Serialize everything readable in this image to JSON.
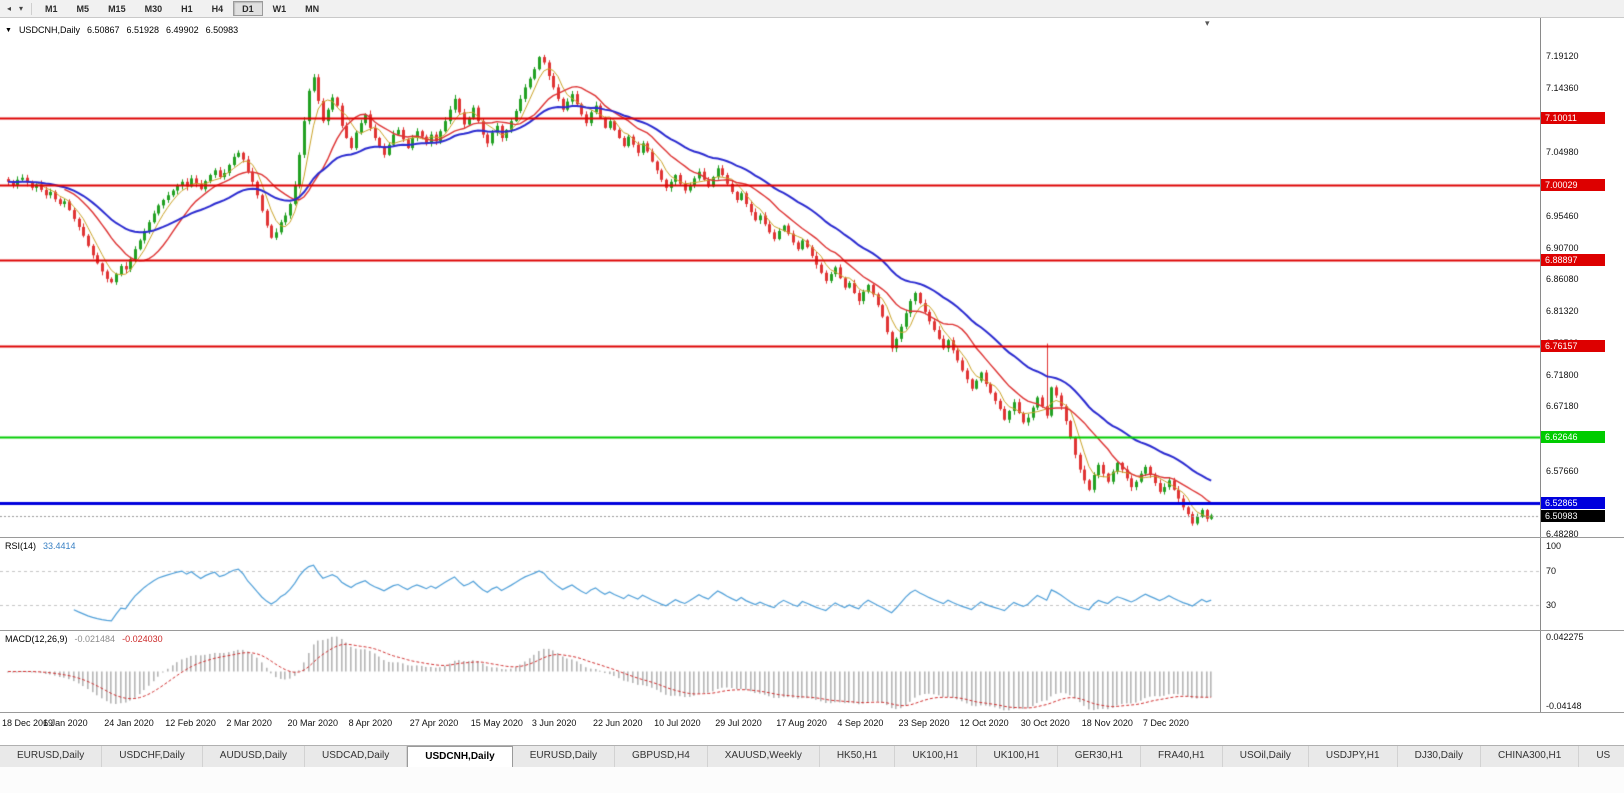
{
  "icons": {
    "collapse_arrow": "▼",
    "shift_marker": "▾"
  },
  "toolbar": {
    "left_icons": [
      {
        "name": "scroll-left-icon",
        "glyph": "◂"
      },
      {
        "name": "chart-dropdown-arrow-icon",
        "glyph": "▾"
      }
    ],
    "timeframes": [
      "M1",
      "M5",
      "M15",
      "M30",
      "H1",
      "H4",
      "D1",
      "W1",
      "MN"
    ],
    "active_timeframe": "D1"
  },
  "window_tabs": {
    "tabs": [
      {
        "label": "EURUSD,Daily"
      },
      {
        "label": "USDCHF,Daily"
      },
      {
        "label": "AUDUSD,Daily"
      },
      {
        "label": "USDCAD,Daily"
      },
      {
        "label": "USDCNH,Daily",
        "active": true
      },
      {
        "label": "EURUSD,Daily"
      },
      {
        "label": "GBPUSD,H4"
      },
      {
        "label": "XAUUSD,Weekly"
      },
      {
        "label": "HK50,H1"
      },
      {
        "label": "UK100,H1"
      },
      {
        "label": "UK100,H1"
      },
      {
        "label": "GER30,H1"
      },
      {
        "label": "FRA40,H1"
      },
      {
        "label": "USOil,Daily"
      },
      {
        "label": "USDJPY,H1"
      },
      {
        "label": "DJ30,Daily"
      },
      {
        "label": "CHINA300,H1"
      },
      {
        "label": "US"
      }
    ]
  },
  "chart_data": {
    "type": "candlestick",
    "symbol": "USDCNH",
    "period": "Daily",
    "title": {
      "symbol_period": "USDCNH,Daily",
      "open": "6.50867",
      "high": "6.51928",
      "low": "6.49902",
      "close": "6.50983"
    },
    "price_axis": {
      "range_top": 7.248,
      "range_bottom": 6.478,
      "ticks": [
        "7.19120",
        "7.14360",
        "7.09600",
        "7.04980",
        "7.00220",
        "6.95460",
        "6.90700",
        "6.86080",
        "6.81320",
        "6.76560",
        "6.71800",
        "6.67180",
        "6.62420",
        "6.57660",
        "6.52900",
        "6.48280"
      ]
    },
    "time_axis": {
      "bars_per_label": 13,
      "total_bars": 257,
      "labels": [
        "18 Dec 2019",
        "6 Jan 2020",
        "24 Jan 2020",
        "12 Feb 2020",
        "2 Mar 2020",
        "20 Mar 2020",
        "8 Apr 2020",
        "27 Apr 2020",
        "15 May 2020",
        "3 Jun 2020",
        "22 Jun 2020",
        "10 Jul 2020",
        "29 Jul 2020",
        "17 Aug 2020",
        "4 Sep 2020",
        "23 Sep 2020",
        "12 Oct 2020",
        "30 Oct 2020",
        "18 Nov 2020",
        "7 Dec 2020"
      ]
    },
    "candle_colors": {
      "up": "#23a123",
      "down": "#e03434"
    },
    "closes": [
      7.005,
      6.999,
      7.008,
      7.011,
      7.004,
      6.996,
      7.001,
      6.993,
      6.985,
      6.99,
      6.979,
      6.972,
      6.976,
      6.963,
      6.95,
      6.938,
      6.925,
      6.91,
      6.896,
      6.884,
      6.872,
      6.861,
      6.856,
      6.868,
      6.88,
      6.875,
      6.89,
      6.905,
      6.918,
      6.932,
      6.945,
      6.958,
      6.97,
      6.978,
      6.985,
      6.992,
      6.999,
      7.005,
      6.998,
      7.01,
      7.002,
      6.994,
      7.006,
      7.015,
      7.022,
      7.012,
      7.018,
      7.03,
      7.042,
      7.048,
      7.038,
      7.02,
      7.005,
      6.985,
      6.962,
      6.94,
      6.922,
      6.93,
      6.945,
      6.955,
      6.972,
      7.0,
      7.045,
      7.095,
      7.14,
      7.16,
      7.125,
      7.095,
      7.112,
      7.13,
      7.118,
      7.088,
      7.07,
      7.055,
      7.078,
      7.092,
      7.105,
      7.085,
      7.07,
      7.058,
      7.045,
      7.06,
      7.075,
      7.082,
      7.068,
      7.055,
      7.07,
      7.08,
      7.072,
      7.062,
      7.075,
      7.065,
      7.08,
      7.095,
      7.112,
      7.128,
      7.108,
      7.09,
      7.1,
      7.115,
      7.095,
      7.075,
      7.062,
      7.078,
      7.088,
      7.07,
      7.082,
      7.095,
      7.11,
      7.128,
      7.145,
      7.158,
      7.172,
      7.19,
      7.182,
      7.162,
      7.145,
      7.128,
      7.112,
      7.124,
      7.135,
      7.12,
      7.105,
      7.092,
      7.108,
      7.118,
      7.1,
      7.085,
      7.095,
      7.082,
      7.07,
      7.058,
      7.072,
      7.06,
      7.048,
      7.062,
      7.05,
      7.035,
      7.022,
      7.008,
      6.996,
      7.005,
      7.015,
      7.002,
      6.992,
      7.0,
      7.01,
      7.02,
      7.008,
      6.998,
      7.012,
      7.025,
      7.015,
      7.002,
      6.99,
      6.978,
      6.988,
      6.972,
      6.96,
      6.948,
      6.955,
      6.942,
      6.93,
      6.92,
      6.932,
      6.94,
      6.928,
      6.915,
      6.905,
      6.918,
      6.908,
      6.895,
      6.882,
      6.87,
      6.858,
      6.868,
      6.878,
      6.862,
      6.848,
      6.855,
      6.84,
      6.828,
      6.842,
      6.852,
      6.838,
      6.822,
      6.805,
      6.782,
      6.758,
      6.772,
      6.79,
      6.81,
      6.828,
      6.84,
      6.825,
      6.812,
      6.798,
      6.785,
      6.772,
      6.758,
      6.77,
      6.755,
      6.74,
      6.725,
      6.712,
      6.698,
      6.71,
      6.722,
      6.705,
      6.692,
      6.68,
      6.668,
      6.652,
      6.665,
      6.678,
      6.662,
      6.648,
      6.655,
      6.67,
      6.685,
      6.672,
      6.658,
      6.7,
      6.688,
      6.672,
      6.65,
      6.625,
      6.6,
      6.578,
      6.562,
      6.548,
      6.57,
      6.585,
      6.572,
      6.56,
      6.575,
      6.588,
      6.578,
      6.565,
      6.552,
      6.56,
      6.572,
      6.582,
      6.57,
      6.558,
      6.545,
      6.552,
      6.562,
      6.548,
      6.535,
      6.522,
      6.512,
      6.498,
      6.508,
      6.518,
      6.505,
      6.51
    ],
    "wick_spike": {
      "bar_index": 221,
      "high": 6.765
    },
    "moving_averages": [
      {
        "period": 5,
        "type": "sma",
        "color": "#c9a227",
        "width": 1
      },
      {
        "period": 13,
        "type": "sma",
        "color": "#dd3333",
        "width": 1.4
      },
      {
        "period": 30,
        "type": "ema",
        "color": "#2b2bd0",
        "width": 2
      }
    ],
    "horizontal_lines": [
      {
        "price": 7.10011,
        "label": "7.10011",
        "color": "#dd0000",
        "width": 2
      },
      {
        "price": 7.00029,
        "label": "7.00029",
        "color": "#dd0000",
        "width": 2
      },
      {
        "price": 6.88897,
        "label": "6.88897",
        "color": "#dd0000",
        "width": 2
      },
      {
        "price": 6.76157,
        "label": "6.76157",
        "color": "#dd0000",
        "width": 2
      },
      {
        "price": 6.62646,
        "label": "6.62646",
        "color": "#00cc00",
        "width": 2
      },
      {
        "price": 6.52865,
        "label": "6.52865",
        "color": "#0000dd",
        "width": 3
      }
    ],
    "current_price": {
      "price": 6.50983,
      "label": "6.50983",
      "badge_color": "#000000",
      "line_color": "#9a9a9a"
    },
    "indicators": {
      "rsi": {
        "label": "RSI(14)",
        "value": "33.4414",
        "color": "#4f9fd8",
        "scale_labels": [
          "100",
          "70",
          "30"
        ],
        "level_lines": [
          70,
          30
        ],
        "range_top": 110
      },
      "macd": {
        "label": "MACD(12,26,9)",
        "main_value": "-0.021484",
        "signal_value": "-0.024030",
        "histogram_color": "#b4b4b4",
        "signal_color": "#d03030",
        "axis_top": "0.042275",
        "axis_bottom": "-0.04148",
        "range": 0.0445
      }
    }
  }
}
